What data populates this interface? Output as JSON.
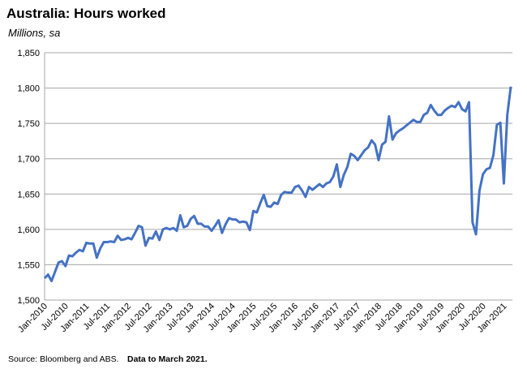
{
  "chart_data": {
    "type": "line",
    "title": "Australia: Hours worked",
    "subtitle": "Millions, sa",
    "source": "Source: Bloomberg and ABS.",
    "note": "Data to March 2021.",
    "categories": [
      "Jan-2010",
      null,
      null,
      null,
      null,
      null,
      "Jul-2010",
      null,
      null,
      null,
      null,
      null,
      "Jan-2011",
      null,
      null,
      null,
      null,
      null,
      "Jul-2011",
      null,
      null,
      null,
      null,
      null,
      "Jan-2012",
      null,
      null,
      null,
      null,
      null,
      "Jul-2012",
      null,
      null,
      null,
      null,
      null,
      "Jan-2013",
      null,
      null,
      null,
      null,
      null,
      "Jul-2013",
      null,
      null,
      null,
      null,
      null,
      "Jan-2014",
      null,
      null,
      null,
      null,
      null,
      "Jul-2014",
      null,
      null,
      null,
      null,
      null,
      "Jan-2015",
      null,
      null,
      null,
      null,
      null,
      "Jul-2015",
      null,
      null,
      null,
      null,
      null,
      "Jan-2016",
      null,
      null,
      null,
      null,
      null,
      "Jul-2016",
      null,
      null,
      null,
      null,
      null,
      "Jan-2017",
      null,
      null,
      null,
      null,
      null,
      "Jul-2017",
      null,
      null,
      null,
      null,
      null,
      "Jan-2018",
      null,
      null,
      null,
      null,
      null,
      "Jul-2018",
      null,
      null,
      null,
      null,
      null,
      "Jan-2019",
      null,
      null,
      null,
      null,
      null,
      "Jul-2019",
      null,
      null,
      null,
      null,
      null,
      "Jan-2020",
      null,
      null,
      null,
      null,
      null,
      "Jul-2020",
      null,
      null,
      null,
      null,
      null,
      "Jan-2021",
      null,
      null
    ],
    "series": [
      {
        "name": "Hours worked",
        "color": "#4472c4",
        "values": [
          1531,
          1536,
          1527,
          1540,
          1553,
          1555,
          1548,
          1563,
          1562,
          1567,
          1571,
          1569,
          1581,
          1580,
          1580,
          1560,
          1573,
          1582,
          1582,
          1583,
          1582,
          1591,
          1585,
          1586,
          1588,
          1586,
          1595,
          1605,
          1603,
          1577,
          1588,
          1587,
          1597,
          1585,
          1600,
          1602,
          1600,
          1602,
          1598,
          1620,
          1603,
          1605,
          1615,
          1619,
          1608,
          1608,
          1604,
          1604,
          1598,
          1605,
          1613,
          1595,
          1607,
          1616,
          1614,
          1614,
          1610,
          1611,
          1610,
          1599,
          1626,
          1624,
          1637,
          1649,
          1633,
          1632,
          1638,
          1636,
          1649,
          1653,
          1652,
          1652,
          1660,
          1662,
          1655,
          1646,
          1660,
          1656,
          1660,
          1664,
          1660,
          1665,
          1667,
          1675,
          1692,
          1660,
          1677,
          1688,
          1707,
          1704,
          1698,
          1705,
          1712,
          1716,
          1726,
          1720,
          1698,
          1720,
          1724,
          1760,
          1727,
          1736,
          1740,
          1743,
          1747,
          1751,
          1755,
          1752,
          1752,
          1762,
          1765,
          1776,
          1768,
          1762,
          1762,
          1768,
          1772,
          1775,
          1773,
          1780,
          1770,
          1767,
          1780,
          1610,
          1593,
          1655,
          1678,
          1685,
          1687,
          1705,
          1748,
          1751,
          1665,
          1762,
          1802
        ]
      }
    ],
    "ylim": [
      1500,
      1850
    ],
    "yticks": [
      {
        "value": 1500,
        "label": "1,500"
      },
      {
        "value": 1550,
        "label": "1,550"
      },
      {
        "value": 1600,
        "label": "1,600"
      },
      {
        "value": 1650,
        "label": "1,650"
      },
      {
        "value": 1700,
        "label": "1,700"
      },
      {
        "value": 1750,
        "label": "1,750"
      },
      {
        "value": 1800,
        "label": "1,800"
      },
      {
        "value": 1850,
        "label": "1,850"
      }
    ],
    "grid": true
  }
}
